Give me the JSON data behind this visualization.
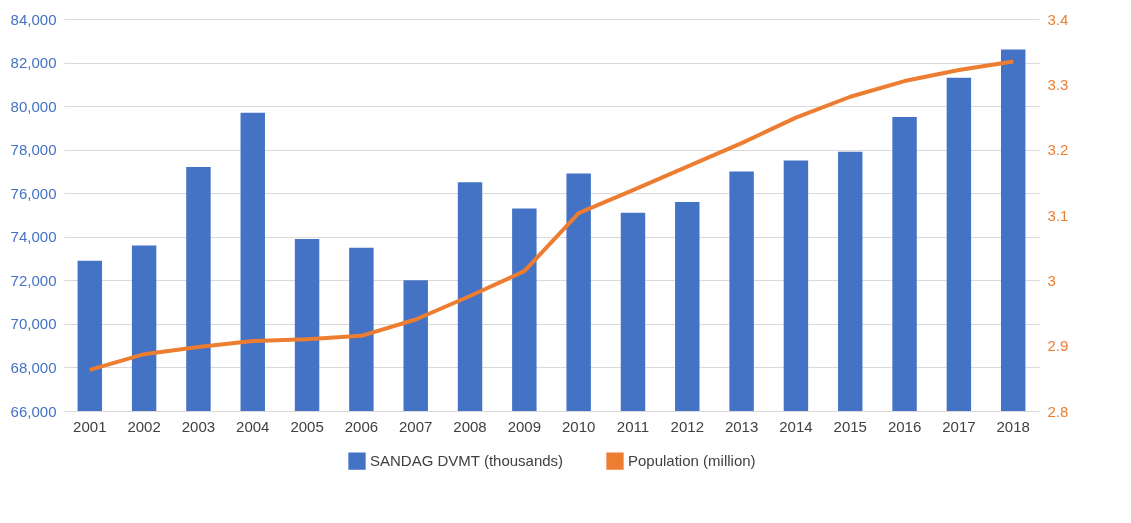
{
  "chart_data": {
    "type": "bar",
    "categories": [
      "2001",
      "2002",
      "2003",
      "2004",
      "2005",
      "2006",
      "2007",
      "2008",
      "2009",
      "2010",
      "2011",
      "2012",
      "2013",
      "2014",
      "2015",
      "2016",
      "2017",
      "2018"
    ],
    "series": [
      {
        "name": "SANDAG DVMT (thousands)",
        "color": "#4472c4",
        "values": [
          72900,
          73600,
          77200,
          79700,
          73900,
          73500,
          72000,
          76500,
          75300,
          76900,
          75100,
          75600,
          77000,
          77500,
          77900,
          79500,
          81300,
          82600
        ]
      },
      {
        "name": "Population (million)",
        "type": "line",
        "axis": "y2",
        "color": "#ed7d31",
        "values": [
          2.863,
          2.887,
          2.898,
          2.907,
          2.91,
          2.915,
          2.94,
          2.976,
          3.014,
          3.103,
          3.138,
          3.174,
          3.21,
          3.249,
          3.281,
          3.305,
          3.322,
          3.335
        ]
      }
    ],
    "ylim": [
      66000,
      84000
    ],
    "yticks": [
      {
        "value": 66000,
        "label": "66,000"
      },
      {
        "value": 68000,
        "label": "68,000"
      },
      {
        "value": 70000,
        "label": "70,000"
      },
      {
        "value": 72000,
        "label": "72,000"
      },
      {
        "value": 74000,
        "label": "74,000"
      },
      {
        "value": 76000,
        "label": "76,000"
      },
      {
        "value": 78000,
        "label": "78,000"
      },
      {
        "value": 80000,
        "label": "80,000"
      },
      {
        "value": 82000,
        "label": "82,000"
      },
      {
        "value": 84000,
        "label": "84,000"
      }
    ],
    "y2lim": [
      2.8,
      3.4
    ],
    "y2ticks": [
      2.8,
      2.9,
      3,
      3.1,
      3.2,
      3.3,
      3.4
    ],
    "grid": "y",
    "legend": "bottom",
    "marker": "none",
    "line_style": "solid"
  }
}
